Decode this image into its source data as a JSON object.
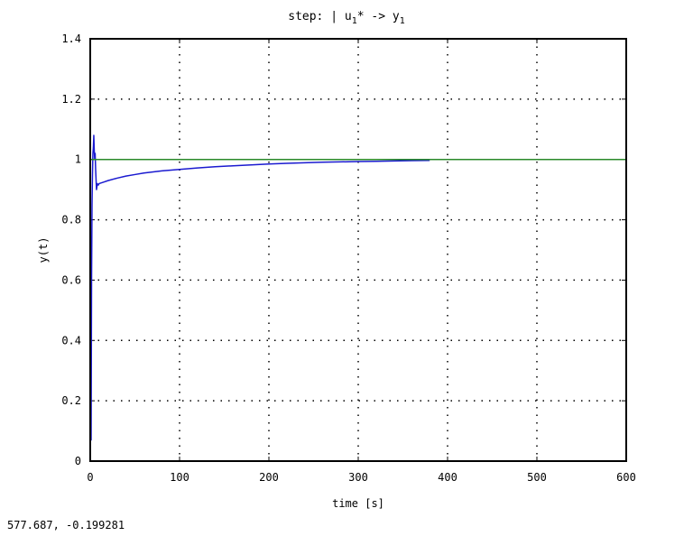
{
  "title_prefix": "step: | u",
  "title_sub1": "1",
  "title_mid": "* -> y",
  "title_sub2": "1",
  "coord_readout": "577.687, -0.199281",
  "chart_data": {
    "type": "line",
    "xlabel": "time [s]",
    "ylabel": "y(t)",
    "xlim": [
      0,
      600
    ],
    "ylim": [
      0,
      1.4
    ],
    "xticks": [
      0,
      100,
      200,
      300,
      400,
      500,
      600
    ],
    "yticks": [
      0,
      0.2,
      0.4,
      0.6,
      0.8,
      1,
      1.2,
      1.4
    ],
    "xtick_labels": [
      "0",
      "100",
      "200",
      "300",
      "400",
      "500",
      "600"
    ],
    "ytick_labels": [
      "0",
      "0.2",
      "0.4",
      "0.6",
      "0.8",
      "1",
      "1.2",
      "1.4"
    ],
    "grid": true,
    "series": [
      {
        "color": "#1a1ad0",
        "x": [
          0,
          0.5,
          1,
          1.5,
          2,
          2.5,
          3,
          3.5,
          4,
          4.5,
          5,
          5.5,
          6,
          7,
          8,
          9,
          10,
          15,
          20,
          30,
          40,
          50,
          60,
          80,
          100,
          120,
          140,
          160,
          180,
          200,
          220,
          240,
          260,
          280,
          300,
          320,
          340,
          360,
          380
        ],
        "y": [
          0,
          0.3,
          0.07,
          0.6,
          0.85,
          0.95,
          1.02,
          1.04,
          1.08,
          1.03,
          1.0,
          1.02,
          0.97,
          0.9,
          0.92,
          0.915,
          0.92,
          0.925,
          0.93,
          0.938,
          0.945,
          0.95,
          0.955,
          0.962,
          0.967,
          0.972,
          0.976,
          0.979,
          0.982,
          0.985,
          0.987,
          0.989,
          0.991,
          0.992,
          0.993,
          0.994,
          0.995,
          0.996,
          0.997
        ]
      },
      {
        "color": "#2a8a2a",
        "x": [
          0,
          600
        ],
        "y": [
          1,
          1
        ]
      }
    ]
  }
}
